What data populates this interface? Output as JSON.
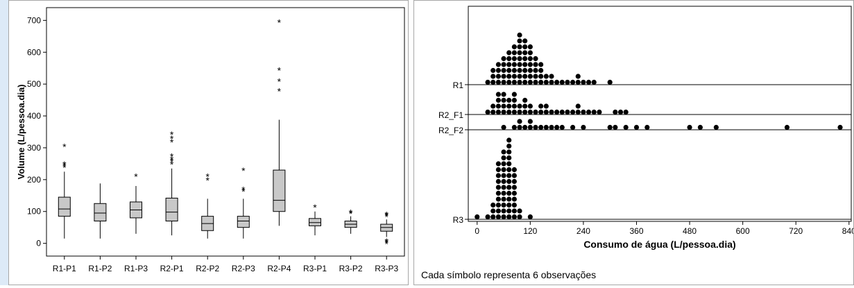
{
  "chart_data": [
    {
      "type": "boxplot",
      "ylabel": "Volume (L/pessoa.dia)",
      "ylim": [
        0,
        700
      ],
      "yticks": [
        0,
        100,
        200,
        300,
        400,
        500,
        600,
        700
      ],
      "box_fill": "#c8c8c8",
      "categories": [
        "R1-P1",
        "R1-P2",
        "R1-P3",
        "R2-P1",
        "R2-P2",
        "R2-P3",
        "R2-P4",
        "R3-P1",
        "R3-P2",
        "R3-P3"
      ],
      "boxes": [
        {
          "label": "R1-P1",
          "min": 15,
          "q1": 85,
          "median": 108,
          "q3": 145,
          "max": 225,
          "outliers": [
            240,
            245,
            250,
            305
          ]
        },
        {
          "label": "R1-P2",
          "min": 15,
          "q1": 70,
          "median": 95,
          "q3": 125,
          "max": 188,
          "outliers": []
        },
        {
          "label": "R1-P3",
          "min": 30,
          "q1": 80,
          "median": 105,
          "q3": 130,
          "max": 180,
          "outliers": [
            212
          ]
        },
        {
          "label": "R2-P1",
          "min": 25,
          "q1": 70,
          "median": 98,
          "q3": 142,
          "max": 235,
          "outliers": [
            250,
            258,
            265,
            275,
            320,
            330,
            343
          ]
        },
        {
          "label": "R2-P2",
          "min": 15,
          "q1": 40,
          "median": 62,
          "q3": 85,
          "max": 140,
          "outliers": [
            200,
            212
          ]
        },
        {
          "label": "R2-P3",
          "min": 15,
          "q1": 50,
          "median": 70,
          "q3": 85,
          "max": 140,
          "outliers": [
            165,
            170,
            230
          ]
        },
        {
          "label": "R2-P4",
          "min": 55,
          "q1": 100,
          "median": 135,
          "q3": 230,
          "max": 388,
          "outliers": [
            480,
            510,
            545,
            695
          ]
        },
        {
          "label": "R3-P1",
          "min": 25,
          "q1": 55,
          "median": 65,
          "q3": 78,
          "max": 100,
          "outliers": [
            115
          ]
        },
        {
          "label": "R3-P2",
          "min": 30,
          "q1": 50,
          "median": 60,
          "q3": 70,
          "max": 85,
          "outliers": [
            95,
            98
          ]
        },
        {
          "label": "R3-P3",
          "min": 20,
          "q1": 38,
          "median": 50,
          "q3": 60,
          "max": 75,
          "outliers": [
            0,
            5,
            8,
            85,
            90,
            92
          ]
        }
      ]
    },
    {
      "type": "dotplot",
      "xlabel": "Consumo de água (L/pessoa.dia)",
      "xlim": [
        -20,
        845
      ],
      "xticks": [
        0,
        120,
        240,
        360,
        480,
        600,
        720,
        840
      ],
      "note": "Cada símbolo representa 6 observações",
      "rows": [
        {
          "label": "R1",
          "bins": [
            [
              24,
              1
            ],
            [
              36,
              3
            ],
            [
              48,
              4
            ],
            [
              60,
              5
            ],
            [
              72,
              6
            ],
            [
              84,
              7
            ],
            [
              96,
              9
            ],
            [
              108,
              8
            ],
            [
              120,
              7
            ],
            [
              132,
              5
            ],
            [
              144,
              4
            ],
            [
              156,
              2
            ],
            [
              168,
              2
            ],
            [
              180,
              1
            ],
            [
              192,
              1
            ],
            [
              204,
              1
            ],
            [
              216,
              1
            ],
            [
              228,
              2
            ],
            [
              240,
              1
            ],
            [
              252,
              1
            ],
            [
              264,
              1
            ],
            [
              300,
              1
            ]
          ]
        },
        {
          "label": "R2_F1",
          "bins": [
            [
              24,
              1
            ],
            [
              36,
              2
            ],
            [
              48,
              4
            ],
            [
              60,
              4
            ],
            [
              72,
              3
            ],
            [
              84,
              4
            ],
            [
              96,
              2
            ],
            [
              108,
              3
            ],
            [
              120,
              2
            ],
            [
              132,
              1
            ],
            [
              144,
              2
            ],
            [
              156,
              2
            ],
            [
              168,
              1
            ],
            [
              180,
              1
            ],
            [
              192,
              1
            ],
            [
              204,
              1
            ],
            [
              216,
              1
            ],
            [
              228,
              2
            ],
            [
              240,
              1
            ],
            [
              252,
              1
            ],
            [
              264,
              1
            ],
            [
              276,
              1
            ],
            [
              312,
              1
            ],
            [
              324,
              1
            ],
            [
              336,
              1
            ]
          ]
        },
        {
          "label": "R2_F2",
          "bins": [
            [
              60,
              1
            ],
            [
              84,
              1
            ],
            [
              96,
              2
            ],
            [
              108,
              1
            ],
            [
              120,
              2
            ],
            [
              132,
              1
            ],
            [
              144,
              1
            ],
            [
              156,
              1
            ],
            [
              168,
              1
            ],
            [
              180,
              1
            ],
            [
              192,
              1
            ],
            [
              216,
              1
            ],
            [
              240,
              1
            ],
            [
              300,
              1
            ],
            [
              312,
              1
            ],
            [
              336,
              1
            ],
            [
              360,
              1
            ],
            [
              384,
              1
            ],
            [
              480,
              1
            ],
            [
              504,
              1
            ],
            [
              540,
              1
            ],
            [
              700,
              1
            ],
            [
              820,
              1
            ]
          ]
        },
        {
          "label": "R3",
          "bins": [
            [
              0,
              1
            ],
            [
              24,
              1
            ],
            [
              36,
              3
            ],
            [
              48,
              10
            ],
            [
              60,
              12
            ],
            [
              72,
              14
            ],
            [
              84,
              9
            ],
            [
              96,
              2
            ],
            [
              120,
              1
            ]
          ]
        }
      ]
    }
  ]
}
